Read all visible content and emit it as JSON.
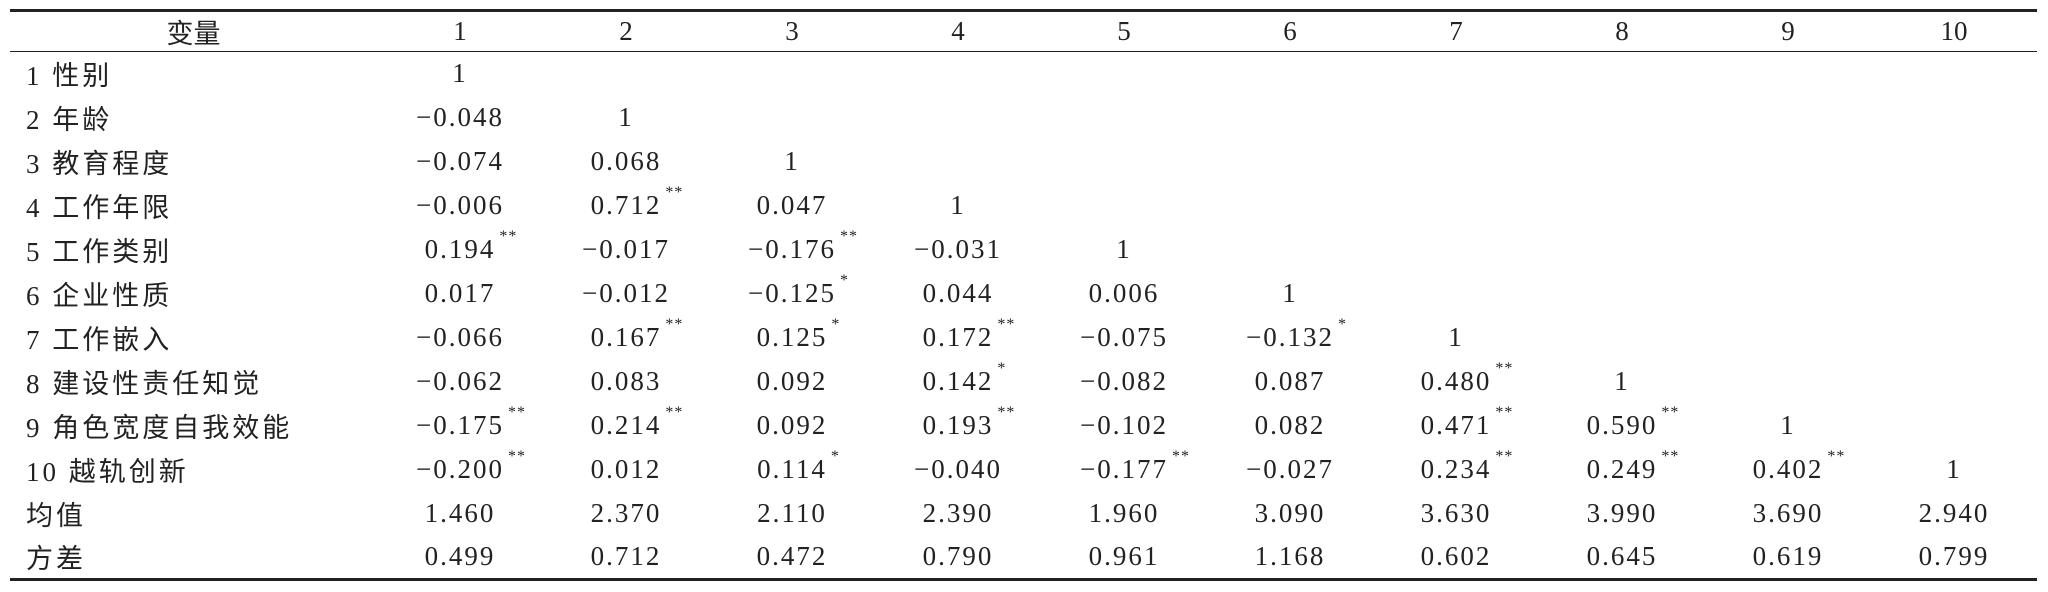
{
  "table": {
    "header": [
      "变量",
      "1",
      "2",
      "3",
      "4",
      "5",
      "6",
      "7",
      "8",
      "9",
      "10"
    ],
    "rows": [
      {
        "label": "1 性别",
        "cells": [
          {
            "text": "1"
          }
        ]
      },
      {
        "label": "2 年龄",
        "cells": [
          {
            "text": "−0.048"
          },
          {
            "text": "1"
          }
        ]
      },
      {
        "label": "3 教育程度",
        "cells": [
          {
            "text": "−0.074"
          },
          {
            "text": "0.068"
          },
          {
            "text": "1"
          }
        ]
      },
      {
        "label": "4 工作年限",
        "cells": [
          {
            "text": "−0.006"
          },
          {
            "text": "0.712",
            "sig": "**"
          },
          {
            "text": "0.047"
          },
          {
            "text": "1"
          }
        ]
      },
      {
        "label": "5 工作类别",
        "cells": [
          {
            "text": "0.194",
            "sig": "**"
          },
          {
            "text": "−0.017"
          },
          {
            "text": "−0.176",
            "sig": "**"
          },
          {
            "text": "−0.031"
          },
          {
            "text": "1"
          }
        ]
      },
      {
        "label": "6 企业性质",
        "cells": [
          {
            "text": "0.017"
          },
          {
            "text": "−0.012"
          },
          {
            "text": "−0.125",
            "sig": "*"
          },
          {
            "text": "0.044"
          },
          {
            "text": "0.006"
          },
          {
            "text": "1"
          }
        ]
      },
      {
        "label": "7 工作嵌入",
        "cells": [
          {
            "text": "−0.066"
          },
          {
            "text": "0.167",
            "sig": "**"
          },
          {
            "text": "0.125",
            "sig": "*"
          },
          {
            "text": "0.172",
            "sig": "**"
          },
          {
            "text": "−0.075"
          },
          {
            "text": "−0.132",
            "sig": "*"
          },
          {
            "text": "1"
          }
        ]
      },
      {
        "label": "8 建设性责任知觉",
        "cells": [
          {
            "text": "−0.062"
          },
          {
            "text": "0.083"
          },
          {
            "text": "0.092"
          },
          {
            "text": "0.142",
            "sig": "*"
          },
          {
            "text": "−0.082"
          },
          {
            "text": "0.087"
          },
          {
            "text": "0.480",
            "sig": "**"
          },
          {
            "text": "1"
          }
        ]
      },
      {
        "label": "9 角色宽度自我效能",
        "cells": [
          {
            "text": "−0.175",
            "sig": "**"
          },
          {
            "text": "0.214",
            "sig": "**"
          },
          {
            "text": "0.092"
          },
          {
            "text": "0.193",
            "sig": "**"
          },
          {
            "text": "−0.102"
          },
          {
            "text": "0.082"
          },
          {
            "text": "0.471",
            "sig": "**"
          },
          {
            "text": "0.590",
            "sig": "**"
          },
          {
            "text": "1"
          }
        ]
      },
      {
        "label": "10 越轨创新",
        "cells": [
          {
            "text": "−0.200",
            "sig": "**"
          },
          {
            "text": "0.012"
          },
          {
            "text": "0.114",
            "sig": "*"
          },
          {
            "text": "−0.040"
          },
          {
            "text": "−0.177",
            "sig": "**"
          },
          {
            "text": "−0.027"
          },
          {
            "text": "0.234",
            "sig": "**"
          },
          {
            "text": "0.249",
            "sig": "**"
          },
          {
            "text": "0.402",
            "sig": "**"
          },
          {
            "text": "1"
          }
        ]
      },
      {
        "label": "均值",
        "cells": [
          {
            "text": "1.460"
          },
          {
            "text": "2.370"
          },
          {
            "text": "2.110"
          },
          {
            "text": "2.390"
          },
          {
            "text": "1.960"
          },
          {
            "text": "3.090"
          },
          {
            "text": "3.630"
          },
          {
            "text": "3.990"
          },
          {
            "text": "3.690"
          },
          {
            "text": "2.940"
          }
        ]
      },
      {
        "label": "方差",
        "cells": [
          {
            "text": "0.499"
          },
          {
            "text": "0.712"
          },
          {
            "text": "0.472"
          },
          {
            "text": "0.790"
          },
          {
            "text": "0.961"
          },
          {
            "text": "1.168"
          },
          {
            "text": "0.602"
          },
          {
            "text": "0.645"
          },
          {
            "text": "0.619"
          },
          {
            "text": "0.799"
          }
        ]
      }
    ]
  }
}
